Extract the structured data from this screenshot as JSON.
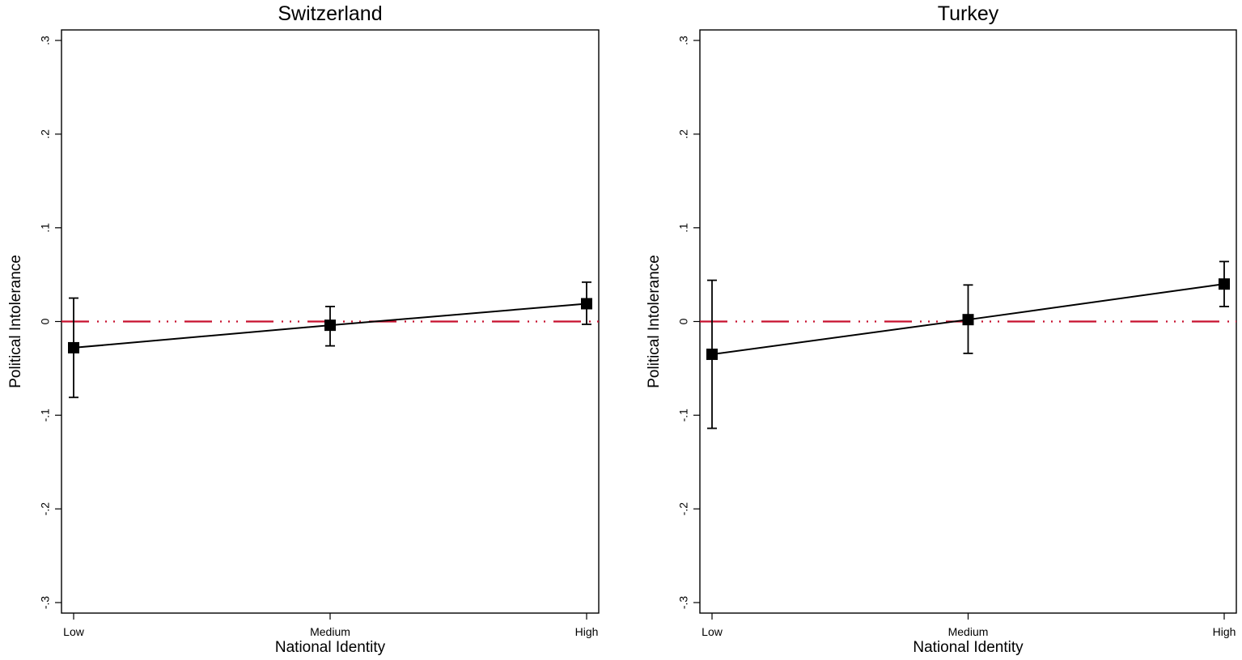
{
  "chart_data": [
    {
      "type": "line",
      "title": "Switzerland",
      "xlabel": "National Identity",
      "ylabel": "Political Intolerance",
      "categories": [
        "Low",
        "Medium",
        "High"
      ],
      "ylim": [
        -0.3,
        0.3
      ],
      "yticks": [
        -0.3,
        -0.2,
        -0.1,
        0,
        0.1,
        0.2,
        0.3
      ],
      "ytick_labels": [
        "-.3",
        "-.2",
        "-.1",
        "0",
        ".1",
        ".2",
        ".3"
      ],
      "reference_line": {
        "y": 0,
        "color": "#c8102e",
        "style": "long-dash-dot-dot"
      },
      "grid": false,
      "series": [
        {
          "values": [
            -0.028,
            -0.004,
            0.019
          ],
          "ci_low": [
            -0.081,
            -0.026,
            -0.003
          ],
          "ci_high": [
            0.025,
            0.016,
            0.042
          ],
          "marker": "square",
          "color": "#000000"
        }
      ]
    },
    {
      "type": "line",
      "title": "Turkey",
      "xlabel": "National Identity",
      "ylabel": "Political Intolerance",
      "categories": [
        "Low",
        "Medium",
        "High"
      ],
      "ylim": [
        -0.3,
        0.3
      ],
      "yticks": [
        -0.3,
        -0.2,
        -0.1,
        0,
        0.1,
        0.2,
        0.3
      ],
      "ytick_labels": [
        "-.3",
        "-.2",
        "-.1",
        "0",
        ".1",
        ".2",
        ".3"
      ],
      "reference_line": {
        "y": 0,
        "color": "#c8102e",
        "style": "long-dash-dot-dot"
      },
      "grid": false,
      "series": [
        {
          "values": [
            -0.035,
            0.002,
            0.04
          ],
          "ci_low": [
            -0.114,
            -0.034,
            0.016
          ],
          "ci_high": [
            0.044,
            0.039,
            0.064
          ],
          "marker": "square",
          "color": "#000000"
        }
      ]
    }
  ]
}
